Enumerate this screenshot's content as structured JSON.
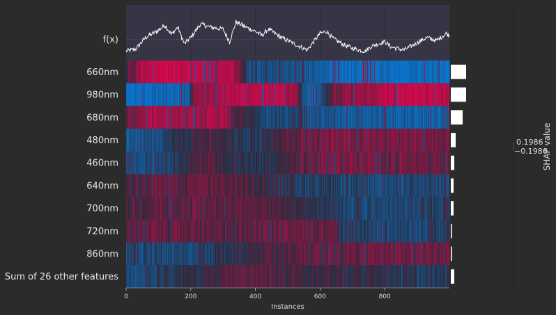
{
  "chart_data": {
    "type": "heatmap",
    "title": "",
    "fx_label": "f(x)",
    "xlabel": "Instances",
    "xlim": [
      0,
      1000
    ],
    "x_ticks": [
      "0",
      "200",
      "400",
      "600",
      "800"
    ],
    "features": [
      {
        "name": "660nm",
        "importance": 0.11,
        "profile": [
          [
            0,
            0.1
          ],
          [
            60,
            0.85
          ],
          [
            150,
            0.95
          ],
          [
            330,
            0.8
          ],
          [
            380,
            -0.4
          ],
          [
            560,
            -0.5
          ],
          [
            650,
            -0.8
          ],
          [
            1000,
            -0.85
          ]
        ]
      },
      {
        "name": "980nm",
        "importance": 0.11,
        "profile": [
          [
            0,
            -0.9
          ],
          [
            190,
            -0.7
          ],
          [
            210,
            0.6
          ],
          [
            400,
            0.85
          ],
          [
            520,
            0.8
          ],
          [
            555,
            -0.75
          ],
          [
            600,
            -0.65
          ],
          [
            640,
            0.4
          ],
          [
            820,
            0.85
          ],
          [
            1000,
            0.9
          ]
        ]
      },
      {
        "name": "680nm",
        "importance": 0.085,
        "profile": [
          [
            0,
            0.3
          ],
          [
            80,
            0.7
          ],
          [
            300,
            0.65
          ],
          [
            410,
            -0.3
          ],
          [
            560,
            -0.4
          ],
          [
            660,
            -0.6
          ],
          [
            1000,
            -0.7
          ]
        ]
      },
      {
        "name": "480nm",
        "importance": 0.035,
        "profile": [
          [
            0,
            -0.55
          ],
          [
            90,
            -0.4
          ],
          [
            250,
            0.2
          ],
          [
            380,
            -0.2
          ],
          [
            600,
            0.5
          ],
          [
            900,
            0.45
          ],
          [
            1000,
            0.35
          ]
        ]
      },
      {
        "name": "460nm",
        "importance": 0.025,
        "profile": [
          [
            0,
            -0.5
          ],
          [
            100,
            -0.35
          ],
          [
            260,
            0.25
          ],
          [
            380,
            -0.2
          ],
          [
            600,
            0.45
          ],
          [
            900,
            0.4
          ],
          [
            1000,
            0.3
          ]
        ]
      },
      {
        "name": "640nm",
        "importance": 0.02,
        "profile": [
          [
            0,
            0.2
          ],
          [
            120,
            0.35
          ],
          [
            380,
            0.2
          ],
          [
            500,
            -0.15
          ],
          [
            700,
            -0.35
          ],
          [
            1000,
            -0.35
          ]
        ]
      },
      {
        "name": "700nm",
        "importance": 0.02,
        "profile": [
          [
            0,
            0.15
          ],
          [
            120,
            0.35
          ],
          [
            400,
            0.3
          ],
          [
            640,
            -0.15
          ],
          [
            700,
            -0.35
          ],
          [
            1000,
            -0.3
          ]
        ]
      },
      {
        "name": "720nm",
        "importance": 0.008,
        "profile": [
          [
            0,
            0.3
          ],
          [
            650,
            0.3
          ],
          [
            660,
            -0.3
          ],
          [
            1000,
            -0.3
          ]
        ]
      },
      {
        "name": "860nm",
        "importance": 0.008,
        "profile": [
          [
            0,
            -0.35
          ],
          [
            250,
            -0.3
          ],
          [
            400,
            0.1
          ],
          [
            600,
            0.35
          ],
          [
            1000,
            0.4
          ]
        ]
      },
      {
        "name": "Sum of 26 other features",
        "importance": 0.025,
        "profile": [
          [
            0,
            -0.4
          ],
          [
            200,
            -0.1
          ],
          [
            350,
            0.3
          ],
          [
            600,
            0.1
          ],
          [
            800,
            -0.1
          ],
          [
            1000,
            -0.2
          ]
        ]
      }
    ],
    "fx_ylim": [
      -1,
      1
    ],
    "fx_profile": [
      [
        0,
        -0.55
      ],
      [
        30,
        -0.45
      ],
      [
        60,
        0.1
      ],
      [
        100,
        0.45
      ],
      [
        120,
        0.7
      ],
      [
        140,
        0.25
      ],
      [
        160,
        0.6
      ],
      [
        180,
        -0.2
      ],
      [
        200,
        0.1
      ],
      [
        230,
        0.75
      ],
      [
        260,
        0.6
      ],
      [
        300,
        0.5
      ],
      [
        320,
        -0.1
      ],
      [
        340,
        0.85
      ],
      [
        370,
        0.6
      ],
      [
        400,
        0.4
      ],
      [
        420,
        0.2
      ],
      [
        440,
        0.5
      ],
      [
        480,
        0.1
      ],
      [
        520,
        -0.2
      ],
      [
        560,
        -0.5
      ],
      [
        600,
        0.3
      ],
      [
        620,
        0.4
      ],
      [
        640,
        0.05
      ],
      [
        680,
        -0.3
      ],
      [
        720,
        -0.5
      ],
      [
        740,
        -0.55
      ],
      [
        760,
        -0.3
      ],
      [
        800,
        -0.1
      ],
      [
        820,
        -0.35
      ],
      [
        860,
        -0.5
      ],
      [
        900,
        -0.15
      ],
      [
        930,
        0.1
      ],
      [
        960,
        -0.05
      ],
      [
        990,
        0.3
      ],
      [
        1000,
        0.2
      ]
    ],
    "colorbar": {
      "title": "SHAP value",
      "max_label": "0.1986",
      "min_label": "−0.1986"
    },
    "colors": {
      "positive": "#ff0052",
      "negative": "#008bfb",
      "background": "#2b2b2b",
      "fx_panel": "#373747",
      "fx_line": "#ffffff",
      "bar": "#ffffff"
    }
  }
}
